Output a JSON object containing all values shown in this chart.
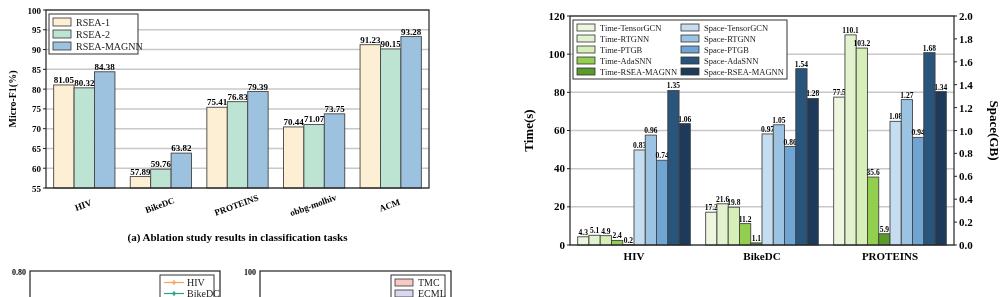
{
  "chart_data": [
    {
      "type": "bar",
      "title": "(a) Ablation study results in classification tasks",
      "ylabel": "Micro-F1(%)",
      "categories": [
        "HIV",
        "BikeDC",
        "PROTEINS",
        "obbg-molhiv",
        "ACM"
      ],
      "series": [
        {
          "name": "RSEA-1",
          "color": "#fdefd3",
          "values": [
            81.05,
            57.89,
            75.41,
            70.44,
            91.23
          ]
        },
        {
          "name": "RSEA-2",
          "color": "#bde3d2",
          "values": [
            80.32,
            59.76,
            76.83,
            71.07,
            90.15
          ]
        },
        {
          "name": "RSEA-MAGNN",
          "color": "#9dc2e0",
          "values": [
            84.38,
            63.82,
            79.39,
            73.75,
            93.28
          ]
        }
      ],
      "ylim": [
        55,
        100
      ],
      "yticks": [
        55,
        60,
        65,
        70,
        75,
        80,
        85,
        90,
        95,
        100
      ],
      "grid": "y",
      "legend": "top left",
      "data_labels": true
    },
    {
      "type": "bar",
      "ylabel": "Time(s)",
      "y2label": "Space(GB)",
      "categories": [
        "HIV",
        "BikeDC",
        "PROTEINS"
      ],
      "series": [
        {
          "name": "Time-TensorGCN",
          "color": "#eef6e0",
          "values": [
            4.3,
            17.2,
            77.5
          ]
        },
        {
          "name": "Time-RTGNN",
          "color": "#e2f2cf",
          "values": [
            5.1,
            21.6,
            110.1
          ]
        },
        {
          "name": "Time-PTGB",
          "color": "#d6eeb8",
          "values": [
            4.9,
            19.8,
            103.2
          ]
        },
        {
          "name": "Time-AdaSNN",
          "color": "#92cf4f",
          "values": [
            2.4,
            11.2,
            35.6
          ]
        },
        {
          "name": "Time-RSEA-MAGNN",
          "color": "#5a9a2a",
          "values": [
            0.2,
            1.1,
            5.9
          ]
        },
        {
          "name": "Space-TensorGCN",
          "color": "#c6dcef",
          "values": [
            0.83,
            0.97,
            1.08
          ],
          "axis": "y2"
        },
        {
          "name": "Space-RTGNN",
          "color": "#9dc3e2",
          "values": [
            0.96,
            1.05,
            1.27
          ],
          "axis": "y2"
        },
        {
          "name": "Space-PTGB",
          "color": "#6fa5d5",
          "values": [
            0.74,
            0.86,
            0.94
          ],
          "axis": "y2"
        },
        {
          "name": "Space-AdaSNN",
          "color": "#29547c",
          "values": [
            1.35,
            1.54,
            1.68
          ],
          "axis": "y2"
        },
        {
          "name": "Space-RSEA-MAGNN",
          "color": "#1e3a5a",
          "values": [
            1.06,
            1.28,
            1.34
          ],
          "axis": "y2"
        }
      ],
      "ylim": [
        0,
        120
      ],
      "yticks": [
        0,
        20,
        40,
        60,
        80,
        100,
        120
      ],
      "y2lim": [
        0,
        2.0
      ],
      "y2ticks": [
        {
          "value": 0,
          "label": "0.0"
        },
        {
          "value": 0.2,
          "label": "0.2"
        },
        {
          "value": 0.4,
          "label": "0.4"
        },
        {
          "value": 0.6,
          "label": "0.6"
        },
        {
          "value": 0.8,
          "label": "0.8"
        },
        {
          "value": 1.0,
          "label": "1.0"
        },
        {
          "value": 1.2,
          "label": "1.2"
        },
        {
          "value": 1.4,
          "label": "1.4"
        },
        {
          "value": 1.6,
          "label": "1.6"
        },
        {
          "value": 1.8,
          "label": "1.8"
        },
        {
          "value": 2.0,
          "label": "2.0"
        }
      ],
      "grid": "y",
      "legend": "top left",
      "data_labels": true
    },
    {
      "type": "other",
      "series": [
        {
          "name": "HIV",
          "color": "#f4a261"
        },
        {
          "name": "BikeDC",
          "color": "#2a9d8f"
        }
      ],
      "annotations": [
        "0.80"
      ],
      "legend": "top right"
    },
    {
      "type": "other",
      "series": [
        {
          "name": "TMC",
          "color": "#f5c9c4"
        },
        {
          "name": "ECML",
          "color": "#d8d8ee"
        }
      ],
      "annotations": [
        "100"
      ],
      "legend": "top right"
    }
  ]
}
